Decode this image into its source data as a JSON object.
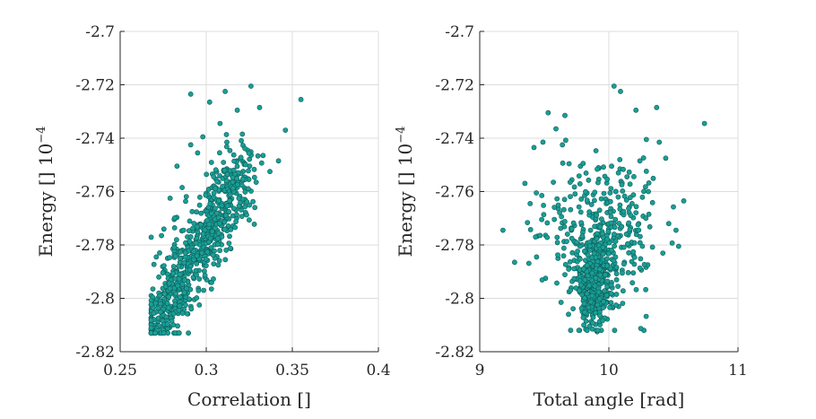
{
  "chart_data": [
    {
      "type": "scatter",
      "xlabel": "Correlation []",
      "ylabel": "Energy [] 10",
      "ylabel_exponent": "−4",
      "xlim": [
        0.25,
        0.4
      ],
      "ylim": [
        -2.82,
        -2.7
      ],
      "xticks": [
        0.25,
        0.3,
        0.35,
        0.4
      ],
      "xtick_labels": [
        "0.25",
        "0.3",
        "0.35",
        "0.4"
      ],
      "yticks": [
        -2.82,
        -2.8,
        -2.78,
        -2.76,
        -2.74,
        -2.72,
        -2.7
      ],
      "ytick_labels": [
        "-2.82",
        "-2.8",
        "-2.78",
        "-2.76",
        "-2.74",
        "-2.72",
        "-2.7"
      ],
      "grid": true,
      "color": "#1a9e96",
      "points": [
        [
          0.355,
          -2.7255
        ],
        [
          0.326,
          -2.7205
        ],
        [
          0.311,
          -2.7225
        ],
        [
          0.291,
          -2.7235
        ],
        [
          0.346,
          -2.737
        ],
        [
          0.331,
          -2.7285
        ],
        [
          0.302,
          -2.7265
        ],
        [
          0.318,
          -2.7295
        ],
        [
          0.342,
          -2.7485
        ],
        [
          0.337,
          -2.7525
        ],
        [
          0.333,
          -2.7465
        ],
        [
          0.321,
          -2.7385
        ],
        [
          0.308,
          -2.7345
        ],
        [
          0.298,
          -2.7395
        ],
        [
          0.291,
          -2.7425
        ],
        [
          0.295,
          -2.7455
        ],
        [
          0.312,
          -2.7415
        ],
        [
          0.324,
          -2.7445
        ],
        [
          0.329,
          -2.7565
        ],
        [
          0.316,
          -2.7545
        ],
        [
          0.306,
          -2.7525
        ],
        [
          0.283,
          -2.7505
        ],
        [
          0.279,
          -2.7625
        ],
        [
          0.286,
          -2.7585
        ],
        [
          0.274,
          -2.7765
        ],
        [
          0.271,
          -2.7845
        ],
        [
          0.269,
          -2.7965
        ],
        [
          0.268,
          -2.8055
        ],
        [
          0.27,
          -2.8115
        ],
        [
          0.272,
          -2.8085
        ],
        [
          0.275,
          -2.8035
        ],
        [
          0.279,
          -2.7985
        ],
        [
          0.283,
          -2.7945
        ],
        [
          0.287,
          -2.7905
        ],
        [
          0.291,
          -2.7865
        ],
        [
          0.295,
          -2.7825
        ],
        [
          0.299,
          -2.7785
        ],
        [
          0.302,
          -2.7745
        ],
        [
          0.306,
          -2.7705
        ],
        [
          0.311,
          -2.7665
        ],
        [
          0.314,
          -2.7625
        ],
        [
          0.318,
          -2.7585
        ],
        [
          0.322,
          -2.7545
        ],
        [
          0.312,
          -2.7515
        ],
        [
          0.296,
          -2.8025
        ],
        [
          0.303,
          -2.7965
        ],
        [
          0.307,
          -2.7875
        ],
        [
          0.288,
          -2.8005
        ],
        [
          0.276,
          -2.7895
        ],
        [
          0.294,
          -2.7745
        ]
      ]
    },
    {
      "type": "scatter",
      "xlabel": "Total angle [rad]",
      "ylabel": "Energy [] 10",
      "ylabel_exponent": "−4",
      "xlim": [
        9,
        11
      ],
      "ylim": [
        -2.82,
        -2.7
      ],
      "xticks": [
        9,
        10,
        11
      ],
      "xtick_labels": [
        "9",
        "10",
        "11"
      ],
      "yticks": [
        -2.82,
        -2.8,
        -2.78,
        -2.76,
        -2.74,
        -2.72,
        -2.7
      ],
      "ytick_labels": [
        "-2.82",
        "-2.8",
        "-2.78",
        "-2.76",
        "-2.74",
        "-2.72",
        "-2.7"
      ],
      "grid": true,
      "color": "#1a9e96",
      "points": [
        [
          10.74,
          -2.7345
        ],
        [
          10.04,
          -2.7205
        ],
        [
          10.09,
          -2.7225
        ],
        [
          10.21,
          -2.7295
        ],
        [
          10.37,
          -2.7285
        ],
        [
          9.53,
          -2.7305
        ],
        [
          9.66,
          -2.7315
        ],
        [
          9.42,
          -2.7435
        ],
        [
          9.18,
          -2.7745
        ],
        [
          9.27,
          -2.7865
        ],
        [
          10.58,
          -2.7635
        ],
        [
          10.52,
          -2.7745
        ],
        [
          10.54,
          -2.7805
        ],
        [
          10.39,
          -2.7415
        ],
        [
          10.44,
          -2.7475
        ],
        [
          9.85,
          -2.8105
        ],
        [
          9.91,
          -2.8125
        ],
        [
          9.97,
          -2.8075
        ],
        [
          10.03,
          -2.8035
        ],
        [
          9.81,
          -2.8055
        ],
        [
          9.76,
          -2.7965
        ],
        [
          9.94,
          -2.7935
        ],
        [
          10.12,
          -2.7865
        ],
        [
          10.26,
          -2.7805
        ],
        [
          10.31,
          -2.7685
        ],
        [
          10.18,
          -2.7645
        ],
        [
          10.05,
          -2.7705
        ],
        [
          9.92,
          -2.7765
        ],
        [
          9.71,
          -2.7745
        ],
        [
          9.61,
          -2.7665
        ],
        [
          9.57,
          -2.7565
        ],
        [
          9.48,
          -2.7705
        ],
        [
          9.39,
          -2.7645
        ],
        [
          9.44,
          -2.7845
        ],
        [
          9.51,
          -2.7925
        ],
        [
          9.63,
          -2.8015
        ],
        [
          9.69,
          -2.7885
        ],
        [
          9.82,
          -2.7825
        ],
        [
          9.88,
          -2.7685
        ],
        [
          10.01,
          -2.7605
        ],
        [
          10.14,
          -2.7545
        ],
        [
          10.24,
          -2.7485
        ],
        [
          9.78,
          -2.7505
        ],
        [
          9.64,
          -2.7425
        ],
        [
          9.59,
          -2.7365
        ],
        [
          10.29,
          -2.7405
        ],
        [
          9.99,
          -2.7885
        ],
        [
          9.87,
          -2.7995
        ],
        [
          10.07,
          -2.7955
        ],
        [
          9.93,
          -2.8045
        ]
      ]
    }
  ]
}
